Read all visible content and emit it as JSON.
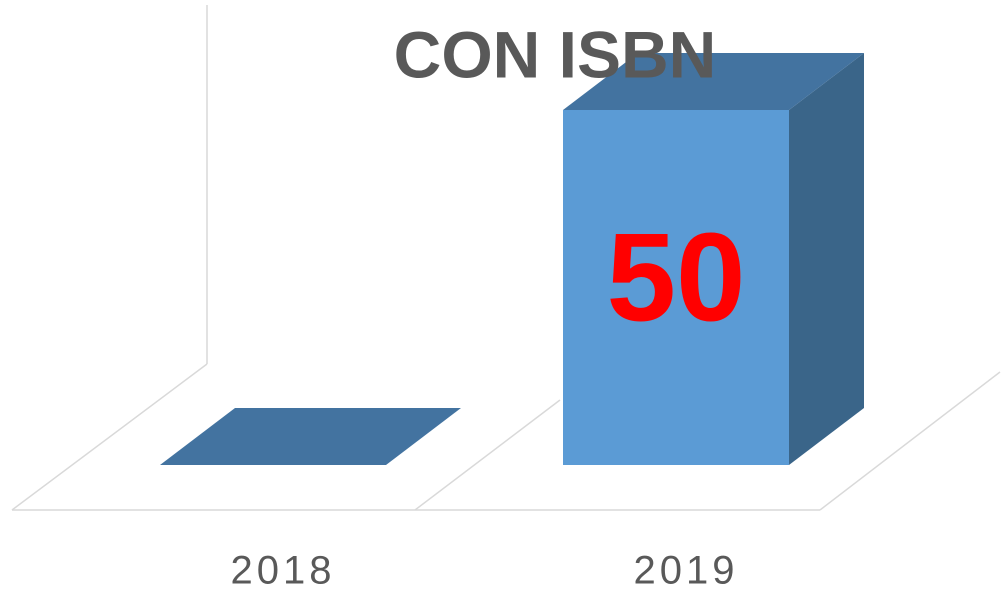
{
  "chart_data": {
    "type": "bar3d",
    "title": "CON ISBN",
    "categories": [
      "2018",
      "2019"
    ],
    "values": [
      0,
      50
    ],
    "color": "#5b9bd5"
  }
}
